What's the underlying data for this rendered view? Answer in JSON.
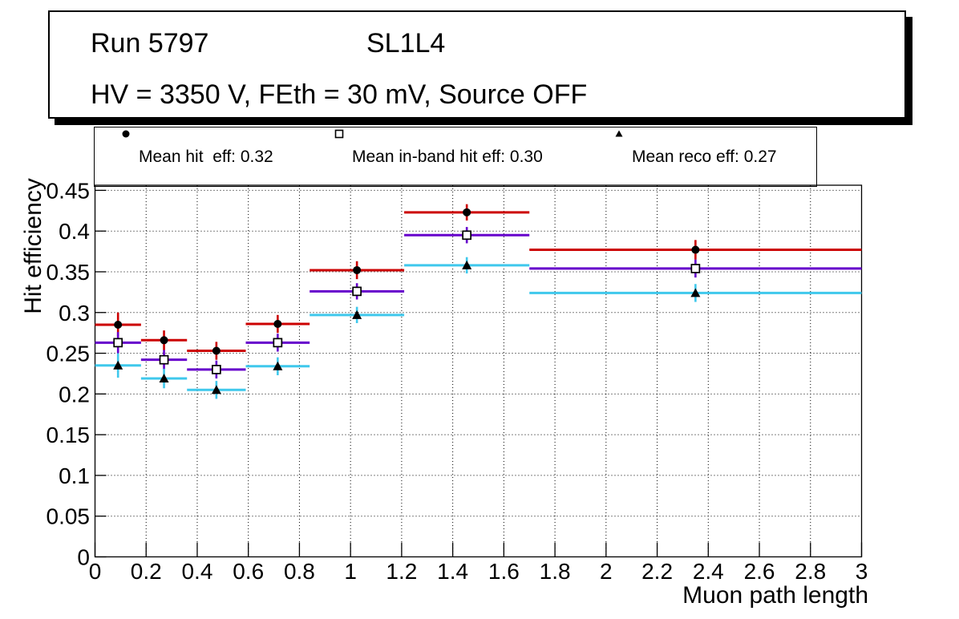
{
  "title_box": {
    "run": "Run 5797",
    "layer": "SL1L4",
    "conditions": "HV = 3350 V, FEth = 30 mV, Source OFF"
  },
  "legend": {
    "entries": [
      {
        "marker": "filled-circle",
        "label": "Mean hit  eff: 0.32",
        "line_color": "#cc0000",
        "marker_color": "#000000"
      },
      {
        "marker": "open-square",
        "label": "Mean in-band hit eff: 0.30",
        "line_color": "#6600cc",
        "marker_color": "#000000"
      },
      {
        "marker": "filled-triangle",
        "label": "Mean reco eff: 0.27",
        "line_color": "#3fc8ec",
        "marker_color": "#000000"
      }
    ]
  },
  "chart_data": {
    "type": "scatter",
    "subtype": "binned-efficiency-with-error-bars",
    "xlabel": "Muon path length",
    "ylabel": "Hit efficiency",
    "xlim": [
      0,
      3
    ],
    "ylim": [
      0,
      0.4563
    ],
    "grid": true,
    "x_ticks": [
      0,
      0.2,
      0.4,
      0.6,
      0.8,
      1.0,
      1.2,
      1.4,
      1.6,
      1.8,
      2.0,
      2.2,
      2.4,
      2.6,
      2.8,
      3.0
    ],
    "x_tick_labels": [
      "0",
      "0.2",
      "0.4",
      "0.6",
      "0.8",
      "1",
      "1.2",
      "1.4",
      "1.6",
      "1.8",
      "2",
      "2.2",
      "2.4",
      "2.6",
      "2.8",
      "3"
    ],
    "y_ticks": [
      0,
      0.05,
      0.1,
      0.15,
      0.2,
      0.25,
      0.3,
      0.35,
      0.4,
      0.45
    ],
    "y_tick_labels": [
      "0",
      "0.05",
      "0.1",
      "0.15",
      "0.2",
      "0.25",
      "0.3",
      "0.35",
      "0.4",
      "0.45"
    ],
    "bin_edges": [
      0,
      0.18,
      0.36,
      0.59,
      0.84,
      1.21,
      1.7,
      3.0
    ],
    "bin_centers": [
      0.09,
      0.27,
      0.475,
      0.715,
      1.025,
      1.455,
      2.35
    ],
    "series": [
      {
        "name": "Mean hit eff",
        "mean": 0.32,
        "marker": "filled-circle",
        "color": "#cc0000",
        "values": [
          0.285,
          0.266,
          0.253,
          0.286,
          0.352,
          0.423,
          0.377
        ],
        "yerr": [
          0.015,
          0.012,
          0.011,
          0.011,
          0.011,
          0.01,
          0.012
        ]
      },
      {
        "name": "Mean in-band hit eff",
        "mean": 0.3,
        "marker": "open-square",
        "color": "#6600cc",
        "values": [
          0.263,
          0.242,
          0.23,
          0.263,
          0.326,
          0.395,
          0.354
        ],
        "yerr": [
          0.013,
          0.012,
          0.011,
          0.011,
          0.01,
          0.01,
          0.011
        ]
      },
      {
        "name": "Mean reco eff",
        "mean": 0.27,
        "marker": "filled-triangle",
        "color": "#3fc8ec",
        "values": [
          0.235,
          0.219,
          0.205,
          0.234,
          0.297,
          0.358,
          0.324
        ],
        "yerr": [
          0.015,
          0.012,
          0.011,
          0.011,
          0.01,
          0.01,
          0.011
        ]
      }
    ]
  }
}
